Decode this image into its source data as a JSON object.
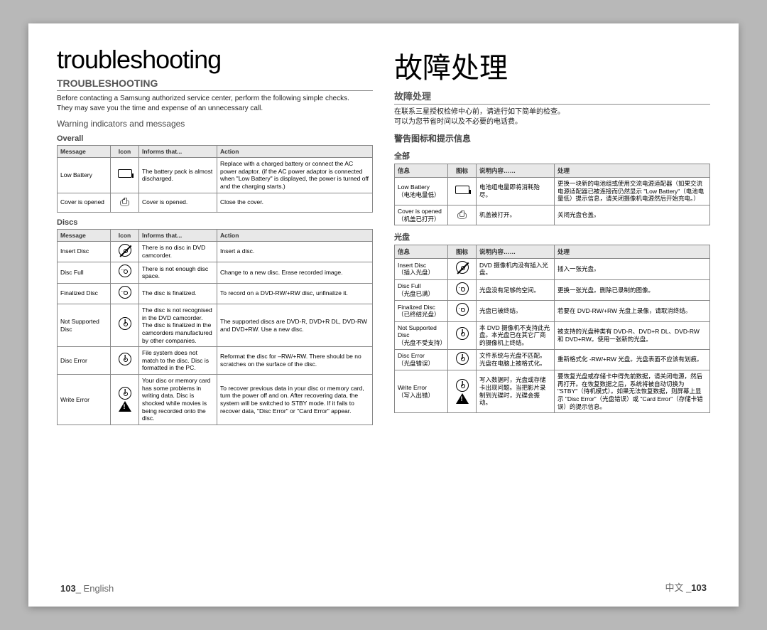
{
  "left": {
    "main_title": "troubleshooting",
    "section_title": "TROUBLESHOOTING",
    "intro": "Before contacting a Samsung authorized service center, perform the following simple checks.\nThey may save you the time and expense of an unnecessary call.",
    "subheading": "Warning indicators and messages",
    "overall": {
      "title": "Overall",
      "headers": [
        "Message",
        "Icon",
        "Informs that...",
        "Action"
      ],
      "rows": [
        {
          "message": "Low Battery",
          "icon": "battery",
          "informs": "The battery pack is almost discharged.",
          "action": "Replace with a charged battery or connect the AC power adaptor. (if the AC power adaptor is connected when \"Low Battery\" is displayed, the power is turned off and the charging starts.)"
        },
        {
          "message": "Cover is opened",
          "icon": "cover",
          "informs": "Cover is opened.",
          "action": "Close the cover."
        }
      ]
    },
    "discs": {
      "title": "Discs",
      "headers": [
        "Message",
        "Icon",
        "Informs that...",
        "Action"
      ],
      "rows": [
        {
          "message": "Insert Disc",
          "icon": "disc-slash",
          "informs": "There is no disc in DVD camcorder.",
          "action": "Insert a disc."
        },
        {
          "message": "Disc Full",
          "icon": "disc-dots",
          "informs": "There is not enough disc space.",
          "action": "Change to a new disc. Erase recorded image."
        },
        {
          "message": "Finalized Disc",
          "icon": "disc-dots",
          "informs": "The disc is finalized.",
          "action": "To record on a DVD-RW/+RW disc, unfinalize it."
        },
        {
          "message": "Not Supported Disc",
          "icon": "disc-warn",
          "informs": "The disc is not recognised in the DVD camcorder. The disc is finalized in the camcorders manufactured by other companies.",
          "action": "The supported discs are DVD-R, DVD+R DL, DVD-RW and DVD+RW. Use a new disc."
        },
        {
          "message": "Disc Error",
          "icon": "disc-warn",
          "informs": "File system does not match to the disc. Disc is formatted in the PC.",
          "action": "Reformat the disc for –RW/+RW. There should be no scratches on the surface of the disc."
        },
        {
          "message": "Write Error",
          "icon": "disc-warn-tri",
          "informs": "Your disc or memory card has some problems in writing data. Disc is shocked while movies is being recorded onto the disc.",
          "action": "To recover previous data in your disc or memory card, turn the power off and on. After recovering data, the system will be switched to STBY mode. If it fails to recover data, \"Disc Error\" or \"Card Error\" appear."
        }
      ]
    },
    "footer_page": "103",
    "footer_lang": "English"
  },
  "right": {
    "main_title": "故障处理",
    "section_title": "故障处理",
    "intro": "在联系三星授权检修中心前，请进行如下简单的检查。\n可以为您节省时间以及不必要的电话费。",
    "subheading": "警告图标和提示信息",
    "overall": {
      "title": "全部",
      "headers": [
        "信息",
        "图标",
        "说明内容……",
        "处理"
      ],
      "rows": [
        {
          "message": "Low Battery\n（电池电量低）",
          "icon": "battery",
          "informs": "电池组电量即将消耗殆尽。",
          "action": "更换一块新的电池组或使用交流电源适配器（如果交流电源适配器已被连接而仍然显示 \"Low Battery\"（电池电量低）提示信息，请关闭摄像机电源然后开始充电。）"
        },
        {
          "message": "Cover is opened\n（机盖已打开）",
          "icon": "cover",
          "informs": "机盖被打开。",
          "action": "关闭光盘仓盖。"
        }
      ]
    },
    "discs": {
      "title": "光盘",
      "headers": [
        "信息",
        "图标",
        "说明内容……",
        "处理"
      ],
      "rows": [
        {
          "message": "Insert Disc\n（插入光盘）",
          "icon": "disc-slash",
          "informs": "DVD 摄像机内没有插入光盘。",
          "action": "插入一张光盘。"
        },
        {
          "message": "Disc Full\n（光盘已满）",
          "icon": "disc-dots",
          "informs": "光盘没有足够的空间。",
          "action": "更换一张光盘。删除已录制的图像。"
        },
        {
          "message": "Finalized Disc\n（已终结光盘）",
          "icon": "disc-dots",
          "informs": "光盘已被终结。",
          "action": "若要在 DVD-RW/+RW 光盘上录像，请取消终结。"
        },
        {
          "message": "Not Supported Disc\n（光盘不受支持）",
          "icon": "disc-warn",
          "informs": "本 DVD 摄像机不支持此光盘。本光盘已在其它厂商的摄像机上终结。",
          "action": "被支持的光盘种类有 DVD-R、DVD+R DL、DVD-RW 和 DVD+RW。使用一张新的光盘。"
        },
        {
          "message": "Disc Error\n（光盘错误）",
          "icon": "disc-warn",
          "informs": "文件系统与光盘不匹配。光盘在电脑上被格式化。",
          "action": "重新格式化 -RW/+RW 光盘。光盘表面不应该有划痕。"
        },
        {
          "message": "Write Error\n（写入出错）",
          "icon": "disc-warn-tri",
          "informs": "写入数据时，光盘或存储卡出现问题。当把影片录制到光碟时，光碟会振动。",
          "action": "要恢复光盘或存储卡中得先前数据，请关闭电源，然后再打开。在恢复数据之后，系统将被自动切换为 \"STBY\"（待机模式）。如果无法恢复数据，则屏幕上显示 \"Disc Error\"（光盘错误）或 \"Card Error\"（存储卡错误）的提示信息。"
        }
      ]
    },
    "footer_lang": "中文",
    "footer_page": "103"
  },
  "colors": {
    "page_bg": "#ffffff",
    "body_bg": "#b8b8b8",
    "header_bg": "#e8e8e8",
    "border": "#888888",
    "text": "#222222",
    "muted": "#555555"
  }
}
